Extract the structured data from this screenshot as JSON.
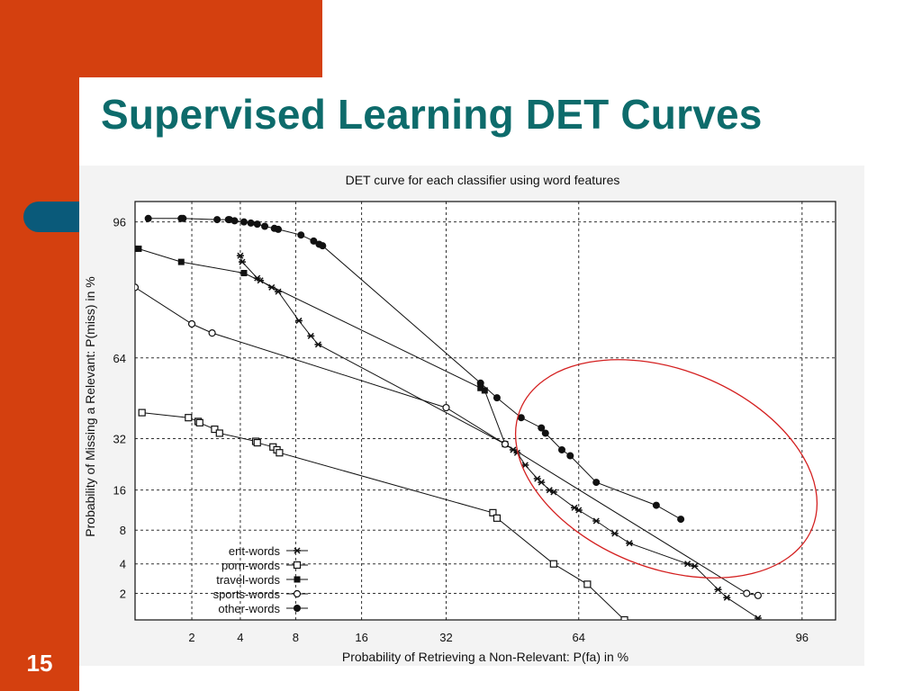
{
  "slide": {
    "title": "Supervised Learning DET Curves",
    "page_number": "15"
  },
  "colors": {
    "accent_orange": "#d4400f",
    "title_teal": "#0d6b6b",
    "pill_blue": "#0a5a7a",
    "highlight_ellipse": "#d42020"
  },
  "chart_data": {
    "type": "line",
    "title": "DET curve for each classifier using word features",
    "xlabel": "Probability of Retrieving a Non-Relevant:  P(fa) in %",
    "ylabel": "Probability of Missing a Relevant:  P(miss) in %",
    "x_scale": "normal-deviate",
    "y_scale": "normal-deviate",
    "xlim": [
      0.8,
      97.5
    ],
    "ylim": [
      1.0,
      97.5
    ],
    "x_ticks": [
      2,
      4,
      8,
      16,
      32,
      64,
      96
    ],
    "y_ticks": [
      2,
      4,
      8,
      16,
      32,
      64,
      96
    ],
    "grid": true,
    "legend_position": "bottom-left",
    "series": [
      {
        "name": "ent-words",
        "marker": "star",
        "points": [
          [
            4.0,
            92
          ],
          [
            4.1,
            91
          ],
          [
            5.0,
            88
          ],
          [
            5.2,
            87.5
          ],
          [
            6.0,
            86
          ],
          [
            6.5,
            85
          ],
          [
            8.3,
            77
          ],
          [
            9.5,
            72
          ],
          [
            10.3,
            69
          ],
          [
            46,
            30
          ],
          [
            48,
            28
          ],
          [
            49,
            27
          ],
          [
            51,
            23
          ],
          [
            54,
            19
          ],
          [
            55,
            18
          ],
          [
            57,
            16
          ],
          [
            58,
            15.5
          ],
          [
            63,
            12
          ],
          [
            64,
            11.5
          ],
          [
            68,
            9.5
          ],
          [
            72,
            7.5
          ],
          [
            75,
            6.2
          ],
          [
            85,
            4
          ],
          [
            86,
            3.8
          ],
          [
            89,
            2.2
          ],
          [
            90,
            1.8
          ],
          [
            93,
            1.05
          ]
        ]
      },
      {
        "name": "porn-words",
        "marker": "open-square",
        "points": [
          [
            0.9,
            42
          ],
          [
            1.9,
            40
          ],
          [
            2.2,
            38.5
          ],
          [
            2.25,
            38
          ],
          [
            2.8,
            35.5
          ],
          [
            3.0,
            34
          ],
          [
            4.9,
            31
          ],
          [
            5.0,
            30.5
          ],
          [
            6.1,
            29
          ],
          [
            6.4,
            28
          ],
          [
            6.6,
            27
          ],
          [
            43,
            11
          ],
          [
            44,
            10
          ],
          [
            58,
            4
          ],
          [
            66,
            2.5
          ],
          [
            74,
            1.0
          ]
        ]
      },
      {
        "name": "travel-words",
        "marker": "filled-square",
        "points": [
          [
            0.8,
            93
          ],
          [
            0.85,
            93
          ],
          [
            1.7,
            91
          ],
          [
            4.2,
            89
          ],
          [
            40,
            52
          ],
          [
            41,
            51
          ],
          [
            46,
            30
          ]
        ]
      },
      {
        "name": "sports-words",
        "marker": "open-circle",
        "points": [
          [
            0.8,
            86
          ],
          [
            2.0,
            76
          ],
          [
            2.7,
            73
          ],
          [
            32,
            44
          ],
          [
            46,
            30
          ],
          [
            92,
            2.0
          ],
          [
            93,
            1.9
          ]
        ]
      },
      {
        "name": "other-words",
        "marker": "filled-circle",
        "points": [
          [
            1.0,
            96.3
          ],
          [
            1.7,
            96.3
          ],
          [
            1.75,
            96.3
          ],
          [
            2.9,
            96.2
          ],
          [
            3.4,
            96.2
          ],
          [
            3.45,
            96.2
          ],
          [
            3.7,
            96.1
          ],
          [
            4.2,
            96
          ],
          [
            4.6,
            95.9
          ],
          [
            5.0,
            95.8
          ],
          [
            5.5,
            95.6
          ],
          [
            6.2,
            95.4
          ],
          [
            6.5,
            95.3
          ],
          [
            8.5,
            94.7
          ],
          [
            9.8,
            94
          ],
          [
            10.4,
            93.6
          ],
          [
            10.8,
            93.4
          ],
          [
            40,
            54
          ],
          [
            44,
            48
          ],
          [
            50,
            40
          ],
          [
            55,
            36
          ],
          [
            56,
            34
          ],
          [
            60,
            28
          ],
          [
            62,
            26
          ],
          [
            68,
            18
          ],
          [
            80,
            12.5
          ],
          [
            84,
            9.8
          ]
        ]
      }
    ]
  }
}
